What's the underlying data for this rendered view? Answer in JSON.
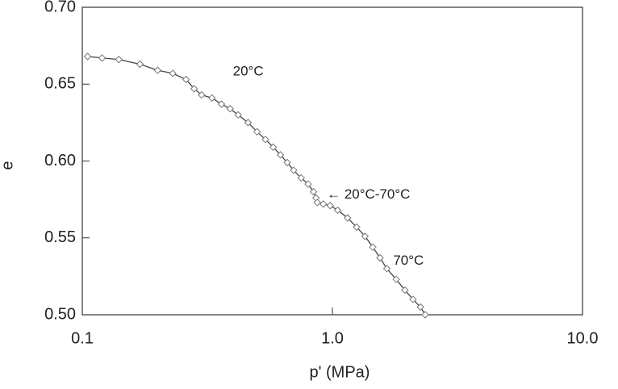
{
  "chart_data": {
    "type": "line",
    "x_label": "p' (MPa)",
    "y_label": "e",
    "x": [
      0.105,
      0.12,
      0.14,
      0.17,
      0.2,
      0.23,
      0.26,
      0.28,
      0.3,
      0.33,
      0.36,
      0.39,
      0.42,
      0.46,
      0.5,
      0.54,
      0.58,
      0.62,
      0.66,
      0.7,
      0.75,
      0.8,
      0.84,
      0.86,
      0.87,
      0.92,
      0.98,
      1.05,
      1.15,
      1.25,
      1.35,
      1.45,
      1.55,
      1.65,
      1.8,
      1.95,
      2.1,
      2.25,
      2.35
    ],
    "series": [
      {
        "name": "e",
        "color": "#444444",
        "values": [
          0.668,
          0.667,
          0.666,
          0.663,
          0.659,
          0.657,
          0.653,
          0.647,
          0.643,
          0.641,
          0.637,
          0.634,
          0.63,
          0.625,
          0.619,
          0.614,
          0.609,
          0.604,
          0.599,
          0.594,
          0.589,
          0.585,
          0.58,
          0.576,
          0.573,
          0.572,
          0.571,
          0.568,
          0.563,
          0.557,
          0.551,
          0.544,
          0.537,
          0.53,
          0.523,
          0.516,
          0.51,
          0.505,
          0.5
        ]
      }
    ],
    "xlog": true,
    "xlim": [
      0.1,
      10
    ],
    "xticks": [
      0.1,
      {
        "value": 1,
        "label": "1.0"
      },
      {
        "value": 10,
        "label": "10.0"
      }
    ],
    "ylim": [
      0.5,
      0.7
    ],
    "yticks": [
      {
        "value": 0.5,
        "label": "0.50"
      },
      {
        "value": 0.55,
        "label": "0.55"
      },
      {
        "value": 0.6,
        "label": "0.60"
      },
      {
        "value": 0.65,
        "label": "0.65"
      },
      {
        "value": 0.7,
        "label": "0.70"
      }
    ],
    "annotations": [
      {
        "text": "20°C",
        "x": 0.4,
        "y": 0.658
      },
      {
        "text": "← 20°C-70°C",
        "x": 0.95,
        "y": 0.578
      },
      {
        "text": "70°C",
        "x": 1.75,
        "y": 0.535
      }
    ]
  }
}
